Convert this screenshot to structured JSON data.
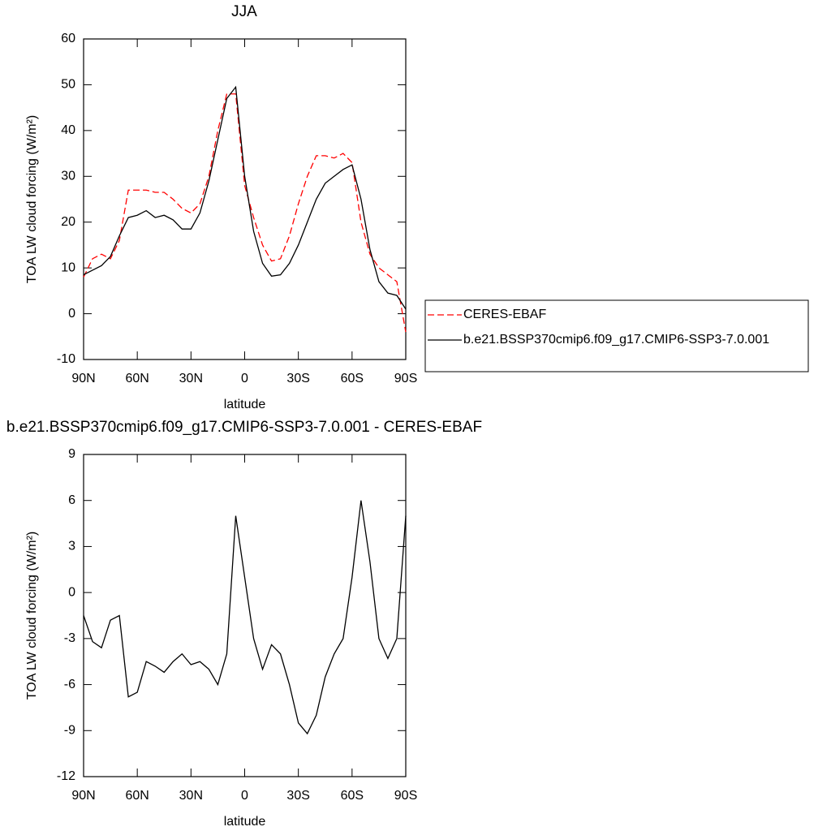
{
  "chart_data": [
    {
      "type": "line",
      "title": "JJA",
      "xlabel": "latitude",
      "ylabel": "TOA LW cloud forcing (W/m²)",
      "x": [
        90,
        85,
        80,
        75,
        70,
        65,
        60,
        55,
        50,
        45,
        40,
        35,
        30,
        25,
        20,
        15,
        10,
        5,
        0,
        -5,
        -10,
        -15,
        -20,
        -25,
        -30,
        -35,
        -40,
        -45,
        -50,
        -55,
        -60,
        -65,
        -70,
        -75,
        -80,
        -85,
        -90
      ],
      "series": [
        {
          "name": "CERES-EBAF",
          "color": "#ff0000",
          "dash": "dashed",
          "values": [
            8,
            12,
            13,
            12,
            16,
            27,
            27,
            27,
            26.5,
            26.5,
            25,
            23,
            22,
            24,
            30,
            40,
            48,
            48,
            28,
            21,
            15,
            11.5,
            12,
            17,
            24,
            30,
            34.5,
            34.5,
            34,
            35,
            33,
            20,
            13,
            10,
            8.5,
            7,
            -4
          ]
        },
        {
          "name": "b.e21.BSSP370cmip6.f09_g17.CMIP6-SSP3-7.0.001",
          "color": "#000000",
          "dash": "solid",
          "values": [
            8.5,
            9.5,
            10.5,
            12.5,
            17,
            21,
            21.5,
            22.5,
            21,
            21.5,
            20.5,
            18.5,
            18.5,
            22,
            29,
            38,
            47,
            49.5,
            30,
            18,
            11,
            8.2,
            8.5,
            11,
            15,
            20,
            25,
            28.5,
            30,
            31.5,
            32.5,
            25,
            14,
            7,
            4.5,
            4,
            1
          ]
        }
      ],
      "xlim": [
        90,
        -90
      ],
      "xticks": [
        {
          "value": 90,
          "label": "90N"
        },
        {
          "value": 60,
          "label": "60N"
        },
        {
          "value": 30,
          "label": "30N"
        },
        0,
        {
          "value": -30,
          "label": "30S"
        },
        {
          "value": -60,
          "label": "60S"
        },
        {
          "value": -90,
          "label": "90S"
        }
      ],
      "ylim": [
        -10,
        60
      ],
      "yticks": [
        -10,
        0,
        10,
        20,
        30,
        40,
        50,
        60
      ],
      "legend": "right"
    },
    {
      "type": "line",
      "title": "b.e21.BSSP370cmip6.f09_g17.CMIP6-SSP3-7.0.001 - CERES-EBAF",
      "xlabel": "latitude",
      "ylabel": "TOA LW cloud forcing (W/m²)",
      "x": [
        90,
        85,
        80,
        75,
        70,
        65,
        60,
        55,
        50,
        45,
        40,
        35,
        30,
        25,
        20,
        15,
        10,
        5,
        0,
        -5,
        -10,
        -15,
        -20,
        -25,
        -30,
        -35,
        -40,
        -45,
        -50,
        -55,
        -60,
        -65,
        -70,
        -75,
        -80,
        -85,
        -90
      ],
      "series": [
        {
          "color": "#000000",
          "dash": "solid",
          "values": [
            -1.5,
            -3.2,
            -3.6,
            -1.8,
            -1.5,
            -6.8,
            -6.5,
            -4.5,
            -4.8,
            -5.2,
            -4.5,
            -4,
            -4.7,
            -4.5,
            -5,
            -6,
            -4,
            5,
            1,
            -3,
            -5,
            -3.4,
            -4,
            -6,
            -8.5,
            -9.2,
            -8,
            -5.5,
            -4,
            -3,
            1,
            6,
            2,
            -3,
            -4.3,
            -3,
            5
          ]
        }
      ],
      "xlim": [
        90,
        -90
      ],
      "xticks": [
        {
          "value": 90,
          "label": "90N"
        },
        {
          "value": 60,
          "label": "60N"
        },
        {
          "value": 30,
          "label": "30N"
        },
        0,
        {
          "value": -30,
          "label": "30S"
        },
        {
          "value": -60,
          "label": "60S"
        },
        {
          "value": -90,
          "label": "90S"
        }
      ],
      "ylim": [
        -12,
        9
      ],
      "yticks": [
        -12,
        -9,
        -6,
        -3,
        0,
        3,
        6,
        9
      ]
    }
  ]
}
